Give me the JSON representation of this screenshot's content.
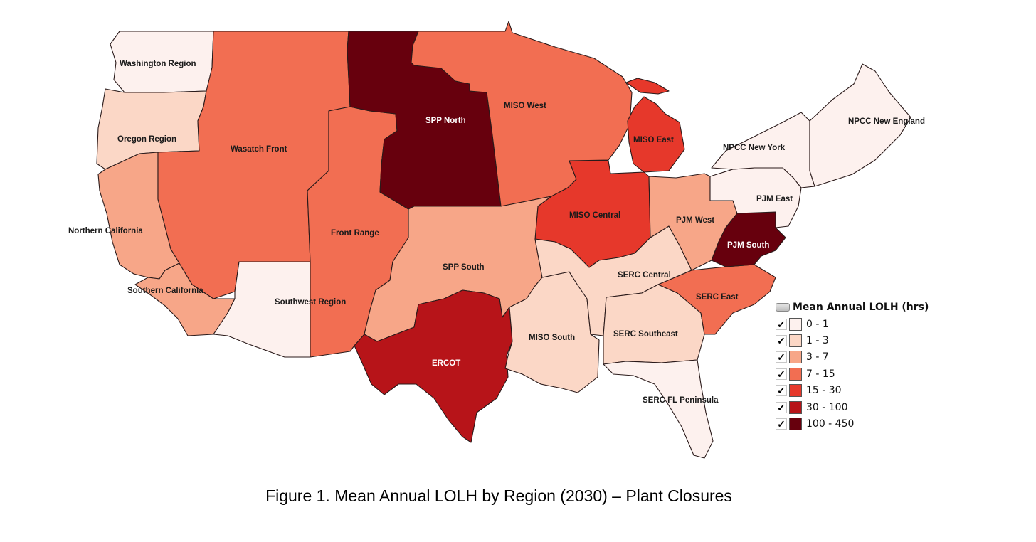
{
  "map": {
    "regions": [
      {
        "id": "washington",
        "label": "Washington Region",
        "class": "0 - 1",
        "color": "#fdf1ee"
      },
      {
        "id": "oregon",
        "label": "Oregon Region",
        "class": "1 - 3",
        "color": "#fbd7c6"
      },
      {
        "id": "northern-california",
        "label": "Northern California",
        "class": "3 - 7",
        "color": "#f7a688"
      },
      {
        "id": "southern-california",
        "label": "Southern California",
        "class": "3 - 7",
        "color": "#f7a688"
      },
      {
        "id": "wasatch-front",
        "label": "Wasatch Front",
        "class": "7 - 15",
        "color": "#f26e52"
      },
      {
        "id": "southwest",
        "label": "Southwest Region",
        "class": "0 - 1",
        "color": "#fdf1ee"
      },
      {
        "id": "front-range",
        "label": "Front Range",
        "class": "7 - 15",
        "color": "#f26e52"
      },
      {
        "id": "spp-north",
        "label": "SPP North",
        "class": "100 - 450",
        "color": "#67000d"
      },
      {
        "id": "spp-south",
        "label": "SPP South",
        "class": "3 - 7",
        "color": "#f7a688"
      },
      {
        "id": "ercot",
        "label": "ERCOT",
        "class": "30 - 100",
        "color": "#b71419"
      },
      {
        "id": "miso-west",
        "label": "MISO West",
        "class": "7 - 15",
        "color": "#f26e52"
      },
      {
        "id": "miso-east",
        "label": "MISO East",
        "class": "15 - 30",
        "color": "#e6382b"
      },
      {
        "id": "miso-central",
        "label": "MISO Central",
        "class": "15 - 30",
        "color": "#e6382b"
      },
      {
        "id": "miso-south",
        "label": "MISO South",
        "class": "1 - 3",
        "color": "#fbd7c6"
      },
      {
        "id": "serc-central",
        "label": "SERC Central",
        "class": "1 - 3",
        "color": "#fbd7c6"
      },
      {
        "id": "serc-southeast",
        "label": "SERC Southeast",
        "class": "1 - 3",
        "color": "#fbd7c6"
      },
      {
        "id": "serc-fl",
        "label": "SERC FL Peninsula",
        "class": "0 - 1",
        "color": "#fdf1ee"
      },
      {
        "id": "serc-east",
        "label": "SERC East",
        "class": "7 - 15",
        "color": "#f26e52"
      },
      {
        "id": "pjm-west",
        "label": "PJM West",
        "class": "3 - 7",
        "color": "#f7a688"
      },
      {
        "id": "pjm-south",
        "label": "PJM South",
        "class": "100 - 450",
        "color": "#67000d"
      },
      {
        "id": "pjm-east",
        "label": "PJM East",
        "class": "0 - 1",
        "color": "#fdf1ee"
      },
      {
        "id": "npcc-new-york",
        "label": "NPCC New York",
        "class": "0 - 1",
        "color": "#fdf1ee"
      },
      {
        "id": "npcc-new-england",
        "label": "NPCC New England",
        "class": "0 - 1",
        "color": "#fdf1ee"
      }
    ]
  },
  "legend": {
    "title": "Mean Annual LOLH (hrs)",
    "check_glyph": "✓",
    "items": [
      {
        "label": "0 - 1",
        "color": "#fdf1ee"
      },
      {
        "label": "1 - 3",
        "color": "#fbd7c6"
      },
      {
        "label": "3 - 7",
        "color": "#f7a688"
      },
      {
        "label": "7 - 15",
        "color": "#f26e52"
      },
      {
        "label": "15 - 30",
        "color": "#e6382b"
      },
      {
        "label": "30 - 100",
        "color": "#b71419"
      },
      {
        "label": "100 - 450",
        "color": "#67000d"
      }
    ]
  },
  "caption": "Figure 1. Mean Annual LOLH by Region (2030) – Plant Closures"
}
